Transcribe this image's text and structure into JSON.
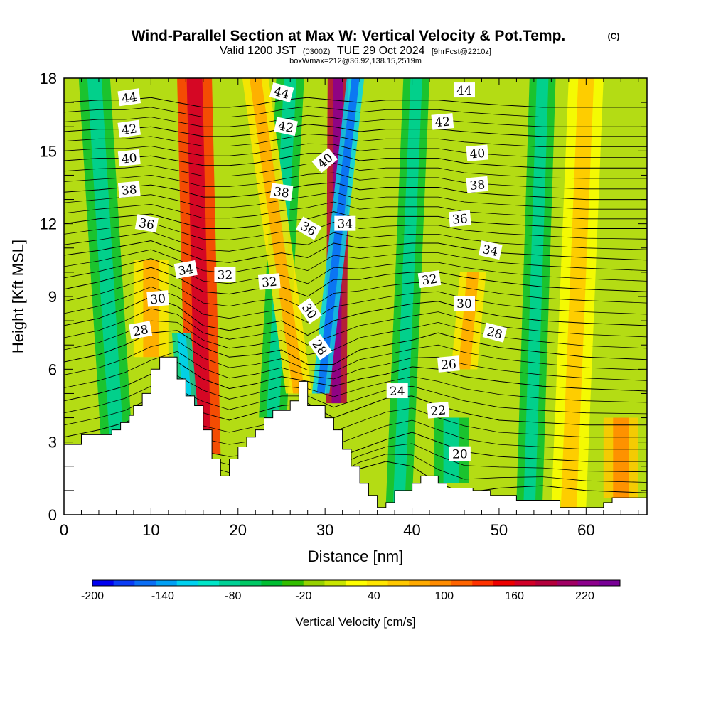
{
  "chart_data": {
    "type": "heatmap",
    "title": "Wind-Parallel Section at Max W: Vertical Velocity & Pot.Temp.",
    "title_tag": "(C)",
    "subtitle": {
      "valid": "Valid 1200 JST",
      "utc": "(0300Z)",
      "date": "TUE 29 Oct 2024",
      "fcst": "[9hrFcst@2210z]"
    },
    "subtitle2": "boxWmax=212@36.92,138.15,2519m",
    "xlabel": "Distance [nm]",
    "ylabel": "Height [Kft MSL]",
    "xlim": [
      0,
      67
    ],
    "ylim": [
      0,
      18
    ],
    "x_ticks": [
      "0",
      "10",
      "20",
      "30",
      "40",
      "50",
      "60"
    ],
    "y_ticks": [
      "0",
      "3",
      "6",
      "9",
      "12",
      "15",
      "18"
    ],
    "colorbar": {
      "title": "Vertical Velocity [cm/s]",
      "min": -200,
      "max": 250,
      "step": 20,
      "labels": [
        "-200",
        "-140",
        "-80",
        "-20",
        "40",
        "100",
        "160",
        "220"
      ],
      "colors": [
        "#0000f0",
        "#0a3cf5",
        "#0a6ef5",
        "#00a0f5",
        "#00d2f0",
        "#00e6c8",
        "#00d296",
        "#00c864",
        "#00be32",
        "#32be00",
        "#96d200",
        "#c8e600",
        "#ffff00",
        "#ffe600",
        "#ffc800",
        "#ffaa00",
        "#ff8c00",
        "#ff6400",
        "#ff3200",
        "#ee0000",
        "#d20028",
        "#b4003c",
        "#a00064",
        "#8c008c",
        "#780096"
      ]
    },
    "terrain": {
      "x": [
        0,
        2,
        2,
        5.5,
        5.5,
        6.5,
        6.5,
        7.5,
        7.5,
        8,
        8,
        9,
        9,
        10,
        10,
        11,
        11,
        13,
        13,
        14,
        14,
        15,
        15,
        16,
        16,
        17,
        17,
        18,
        18,
        19,
        19,
        20,
        20,
        21,
        21,
        22,
        22,
        23,
        23,
        24,
        24,
        26,
        26,
        27,
        27,
        28,
        28,
        30,
        30,
        31,
        31,
        32,
        32,
        33,
        33,
        34,
        34,
        35,
        35,
        36,
        36,
        37,
        37,
        38,
        38,
        40,
        40,
        41,
        41,
        42,
        42,
        43,
        43,
        44,
        44,
        46,
        46,
        47,
        47,
        48,
        48,
        49,
        49,
        50,
        50,
        52,
        52,
        53,
        53,
        57,
        57,
        59,
        59,
        62,
        62,
        63,
        63,
        65,
        65,
        67
      ],
      "z": [
        2.9,
        2.9,
        3.3,
        3.3,
        3.5,
        3.5,
        3.8,
        3.8,
        4.1,
        4.1,
        4.5,
        4.5,
        5.0,
        5.0,
        6.0,
        6.0,
        6.5,
        6.5,
        5.6,
        5.6,
        4.9,
        4.9,
        4.5,
        4.5,
        3.5,
        3.5,
        2.3,
        2.3,
        1.6,
        1.6,
        2.3,
        2.3,
        2.8,
        2.8,
        3.2,
        3.2,
        3.5,
        3.5,
        4.0,
        4.0,
        4.3,
        4.3,
        4.7,
        4.7,
        5.5,
        5.5,
        4.5,
        4.5,
        4.0,
        4.0,
        3.5,
        3.5,
        2.7,
        2.7,
        2.0,
        2.0,
        1.3,
        1.3,
        0.8,
        0.8,
        0.3,
        0.3,
        0.5,
        0.5,
        1.0,
        1.0,
        1.3,
        1.3,
        1.6,
        1.6,
        1.6,
        1.6,
        1.3,
        1.3,
        1.1,
        1.1,
        1.1,
        1.1,
        1.0,
        1.0,
        1.0,
        1.0,
        0.8,
        0.8,
        0.8,
        0.8,
        0.6,
        0.6,
        0.6,
        0.6,
        0.3,
        0.3,
        0.3,
        0.3,
        0.5,
        0.5,
        0.7,
        0.7,
        0.7,
        0.7
      ]
    },
    "theta_contours": [
      {
        "label": "20",
        "z": [
          0.8,
          1.2,
          1.5,
          1.8,
          2.0,
          1.8,
          1.4,
          1.1,
          1.0,
          1.0,
          1.3,
          1.9,
          2.2,
          2.0,
          1.3,
          0.9,
          1.1,
          1.2,
          1.0,
          0.9
        ]
      },
      {
        "label": "22",
        "z": [
          1.7,
          2.1,
          2.5,
          2.9,
          3.0,
          2.6,
          2.4,
          2.5,
          2.6,
          2.5,
          2.3,
          2.7,
          3.1,
          3.4,
          3.0,
          2.6,
          2.4,
          2.3,
          2.2,
          2.2
        ]
      },
      {
        "label": "24",
        "z": [
          3.2,
          3.5,
          3.8,
          4.3,
          4.6,
          4.2,
          3.9,
          4.2,
          4.5,
          4.6,
          4.0,
          4.4,
          4.8,
          4.9,
          4.5,
          4.2,
          3.9,
          3.8,
          3.7,
          3.7
        ]
      },
      {
        "label": "26",
        "z": [
          4.7,
          5.0,
          5.3,
          5.8,
          6.3,
          5.6,
          5.2,
          5.4,
          5.7,
          5.5,
          5.3,
          5.6,
          5.8,
          6.1,
          6.0,
          5.7,
          5.5,
          5.3,
          5.2,
          5.1
        ]
      },
      {
        "label": "28",
        "z": [
          6.3,
          6.6,
          7.0,
          7.5,
          7.6,
          6.9,
          6.5,
          6.6,
          6.8,
          6.2,
          6.2,
          6.8,
          7.0,
          7.2,
          7.5,
          7.2,
          6.9,
          6.7,
          6.5,
          6.4
        ]
      },
      {
        "label": "30",
        "z": [
          7.8,
          8.1,
          8.5,
          9.0,
          8.6,
          7.8,
          7.6,
          7.8,
          8.0,
          7.4,
          8.0,
          8.3,
          8.5,
          8.7,
          8.8,
          8.5,
          8.2,
          8.0,
          7.9,
          7.8
        ]
      },
      {
        "label": "32",
        "z": [
          9.3,
          9.6,
          9.9,
          10.2,
          9.8,
          9.2,
          9.1,
          9.3,
          9.4,
          9.0,
          9.7,
          9.7,
          9.9,
          10.0,
          10.0,
          9.8,
          9.6,
          9.4,
          9.3,
          9.2
        ]
      },
      {
        "label": "34",
        "z": [
          10.7,
          10.9,
          11.1,
          11.3,
          10.9,
          10.5,
          10.4,
          10.6,
          10.8,
          10.6,
          11.2,
          11.0,
          11.1,
          11.2,
          11.2,
          11.0,
          10.8,
          10.7,
          10.6,
          10.5
        ]
      },
      {
        "label": "36",
        "z": [
          12.0,
          12.2,
          12.3,
          12.4,
          12.1,
          11.8,
          11.8,
          11.9,
          12.1,
          12.2,
          12.5,
          12.2,
          12.3,
          12.3,
          12.3,
          12.1,
          12.0,
          11.9,
          11.8,
          11.8
        ]
      },
      {
        "label": "38",
        "z": [
          13.3,
          13.4,
          13.5,
          13.6,
          13.4,
          13.1,
          13.1,
          13.2,
          13.4,
          13.6,
          13.7,
          13.4,
          13.5,
          13.5,
          13.5,
          13.3,
          13.2,
          13.1,
          13.0,
          13.0
        ]
      },
      {
        "label": "40",
        "z": [
          14.6,
          14.7,
          14.7,
          14.8,
          14.6,
          14.4,
          14.4,
          14.5,
          14.7,
          14.9,
          14.9,
          14.6,
          14.7,
          14.7,
          14.7,
          14.5,
          14.4,
          14.3,
          14.3,
          14.3
        ]
      },
      {
        "label": "42",
        "z": [
          15.8,
          15.9,
          15.9,
          16.0,
          15.8,
          15.6,
          15.6,
          15.7,
          15.9,
          16.1,
          16.0,
          15.8,
          15.9,
          15.9,
          15.9,
          15.8,
          15.7,
          15.6,
          15.6,
          15.6
        ]
      },
      {
        "label": "44",
        "z": [
          17.0,
          17.1,
          17.1,
          17.2,
          17.0,
          16.8,
          16.8,
          16.9,
          17.1,
          17.2,
          17.1,
          17.0,
          17.1,
          17.1,
          17.1,
          17.0,
          16.9,
          16.8,
          16.8,
          16.8
        ]
      }
    ],
    "theta_contour_x": [
      0,
      4,
      7,
      10,
      13,
      16,
      19,
      22,
      25,
      28,
      31,
      34,
      37,
      40,
      43,
      46,
      50,
      55,
      60,
      67
    ],
    "contour_labels": [
      {
        "text": "44",
        "x": 7.5,
        "y": 17.2,
        "angle": -8
      },
      {
        "text": "42",
        "x": 7.5,
        "y": 15.9,
        "angle": -8
      },
      {
        "text": "40",
        "x": 7.5,
        "y": 14.7,
        "angle": -6
      },
      {
        "text": "38",
        "x": 7.5,
        "y": 13.4,
        "angle": -5
      },
      {
        "text": "36",
        "x": 9.5,
        "y": 12.0,
        "angle": 10
      },
      {
        "text": "34",
        "x": 14,
        "y": 10.1,
        "angle": -10
      },
      {
        "text": "32",
        "x": 18.5,
        "y": 9.9,
        "angle": 0
      },
      {
        "text": "30",
        "x": 10.8,
        "y": 8.9,
        "angle": -5
      },
      {
        "text": "28",
        "x": 8.8,
        "y": 7.6,
        "angle": -10
      },
      {
        "text": "44",
        "x": 25,
        "y": 17.4,
        "angle": 15
      },
      {
        "text": "42",
        "x": 25.5,
        "y": 16.0,
        "angle": 12
      },
      {
        "text": "40",
        "x": 30,
        "y": 14.6,
        "angle": -40
      },
      {
        "text": "38",
        "x": 25,
        "y": 13.3,
        "angle": 8
      },
      {
        "text": "36",
        "x": 28.1,
        "y": 11.8,
        "angle": 30
      },
      {
        "text": "34",
        "x": 32.3,
        "y": 12.0,
        "angle": 0
      },
      {
        "text": "32",
        "x": 23.6,
        "y": 9.6,
        "angle": -5
      },
      {
        "text": "30",
        "x": 28.2,
        "y": 8.4,
        "angle": 55
      },
      {
        "text": "28",
        "x": 29.4,
        "y": 6.9,
        "angle": 55
      },
      {
        "text": "44",
        "x": 46,
        "y": 17.5,
        "angle": 0
      },
      {
        "text": "42",
        "x": 43.5,
        "y": 16.2,
        "angle": -5
      },
      {
        "text": "40",
        "x": 47.5,
        "y": 14.9,
        "angle": -5
      },
      {
        "text": "38",
        "x": 47.5,
        "y": 13.6,
        "angle": -5
      },
      {
        "text": "36",
        "x": 45.5,
        "y": 12.2,
        "angle": -5
      },
      {
        "text": "34",
        "x": 49,
        "y": 10.9,
        "angle": 12
      },
      {
        "text": "32",
        "x": 42,
        "y": 9.7,
        "angle": -8
      },
      {
        "text": "30",
        "x": 46,
        "y": 8.7,
        "angle": 0
      },
      {
        "text": "28",
        "x": 49.5,
        "y": 7.5,
        "angle": 15
      },
      {
        "text": "26",
        "x": 44.2,
        "y": 6.2,
        "angle": -5
      },
      {
        "text": "24",
        "x": 38.3,
        "y": 5.1,
        "angle": 0
      },
      {
        "text": "22",
        "x": 43,
        "y": 4.3,
        "angle": -5
      },
      {
        "text": "20",
        "x": 45.5,
        "y": 2.5,
        "angle": 0
      }
    ],
    "w_bands": [
      {
        "x_base": 16,
        "x_top": 15,
        "halfwidth": 2.0,
        "w": 160,
        "z_bottom": 2.5,
        "z_top": 18
      },
      {
        "x_base": 31.3,
        "x_top": 31.5,
        "halfwidth": 1.2,
        "w": 220,
        "z_bottom": 4.6,
        "z_top": 18
      },
      {
        "x_base": 29.5,
        "x_top": 33.5,
        "halfwidth": 1.0,
        "w": -120,
        "z_bottom": 5.0,
        "z_top": 18
      },
      {
        "x_base": 14.7,
        "x_top": 13.5,
        "halfwidth": 1.1,
        "w": -80,
        "z_bottom": 2.5,
        "z_top": 7.5
      },
      {
        "x_base": 6,
        "x_top": 3.5,
        "halfwidth": 1.8,
        "w": -30,
        "z_bottom": 3.3,
        "z_top": 18
      },
      {
        "x_base": 24,
        "x_top": 26,
        "halfwidth": 1.6,
        "w": -40,
        "z_bottom": 4.0,
        "z_top": 18
      },
      {
        "x_base": 38.5,
        "x_top": 40.5,
        "halfwidth": 1.5,
        "w": -30,
        "z_bottom": 0.5,
        "z_top": 18
      },
      {
        "x_base": 46,
        "x_top": 47,
        "halfwidth": 1.5,
        "w": 70,
        "z_bottom": 6.0,
        "z_top": 10.0
      },
      {
        "x_base": 44.5,
        "x_top": 44.5,
        "halfwidth": 2.0,
        "w": -40,
        "z_bottom": 1.3,
        "z_top": 4.0
      },
      {
        "x_base": 53.5,
        "x_top": 55,
        "halfwidth": 1.5,
        "w": -30,
        "z_bottom": 0.6,
        "z_top": 18
      },
      {
        "x_base": 58,
        "x_top": 60,
        "halfwidth": 2.0,
        "w": 50,
        "z_bottom": 0.3,
        "z_top": 18
      },
      {
        "x_base": 64,
        "x_top": 64,
        "halfwidth": 2.0,
        "w": 80,
        "z_bottom": 0.7,
        "z_top": 4.0
      },
      {
        "x_base": 10,
        "x_top": 10,
        "halfwidth": 2.0,
        "w": 60,
        "z_bottom": 6.5,
        "z_top": 10.5
      },
      {
        "x_base": 27,
        "x_top": 22,
        "halfwidth": 1.5,
        "w": 70,
        "z_bottom": 5.0,
        "z_top": 18
      }
    ]
  }
}
